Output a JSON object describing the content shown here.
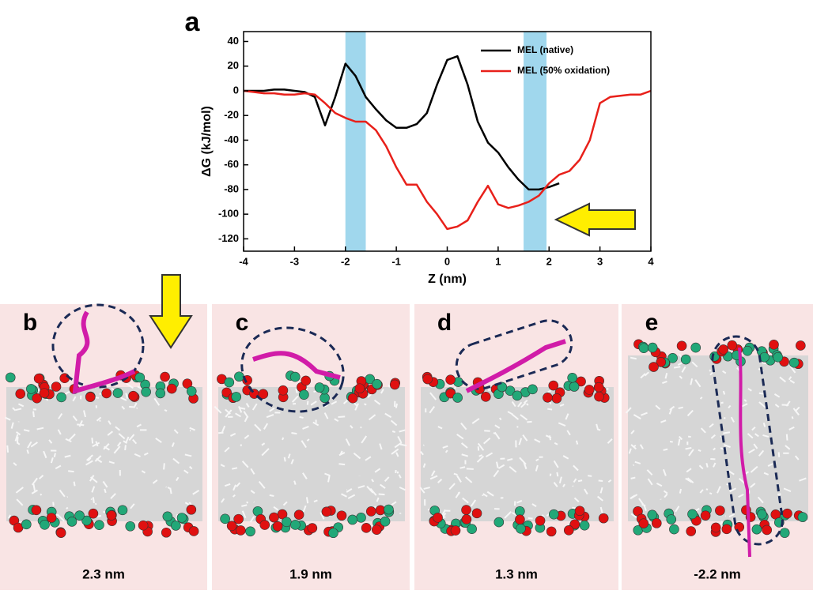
{
  "chart_data": {
    "type": "line",
    "panel_label": "a",
    "x_label": "Z (nm)",
    "y_label": "ΔG (kJ/mol)",
    "x": [
      -4,
      -3.8,
      -3.6,
      -3.4,
      -3.2,
      -3,
      -2.8,
      -2.6,
      -2.4,
      -2.2,
      -2,
      -1.8,
      -1.6,
      -1.4,
      -1.2,
      -1,
      -0.8,
      -0.6,
      -0.4,
      -0.2,
      0,
      0.2,
      0.4,
      0.6,
      0.8,
      1,
      1.2,
      1.4,
      1.6,
      1.8,
      2,
      2.2,
      2.4,
      2.6,
      2.8,
      3,
      3.2,
      3.4,
      3.6,
      3.8,
      4
    ],
    "series": [
      {
        "name": "MEL (native)",
        "color": "#000000",
        "values": [
          0,
          0,
          0,
          1,
          1,
          0,
          -1,
          -5,
          -28,
          -5,
          22,
          12,
          -5,
          -15,
          -24,
          -30,
          -30,
          -27,
          -18,
          5,
          25,
          28,
          5,
          -25,
          -42,
          -50,
          -62,
          -72,
          -80,
          -80,
          -78,
          -75,
          null,
          null,
          null,
          null,
          null,
          null,
          null,
          null,
          null
        ]
      },
      {
        "name": "MEL (50% oxidation)",
        "color": "#e8201a",
        "values": [
          0,
          -1,
          -2,
          -2,
          -3,
          -3,
          -2,
          -3,
          -10,
          -18,
          -22,
          -25,
          -25,
          -32,
          -45,
          -62,
          -76,
          -76,
          -90,
          -100,
          -112,
          -110,
          -105,
          -90,
          -77,
          -92,
          -95,
          -93,
          -90,
          -85,
          -75,
          -68,
          -65,
          -56,
          -40,
          -10,
          -5,
          -4,
          -3,
          -3,
          0
        ]
      }
    ],
    "bands": [
      [
        -2.0,
        -1.6
      ],
      [
        1.5,
        1.95
      ]
    ],
    "band_color": "#8fd0ea",
    "xlim": [
      -4,
      4
    ],
    "xticks": [
      -4,
      -3,
      -2,
      -1,
      0,
      1,
      2,
      3,
      4
    ],
    "ylim": [
      -130,
      48
    ],
    "yticks": [
      -120,
      -100,
      -80,
      -60,
      -40,
      -20,
      0,
      20,
      40
    ],
    "legend": "top-right"
  },
  "panels": [
    {
      "label": "b",
      "caption": "2.3 nm"
    },
    {
      "label": "c",
      "caption": "1.9 nm"
    },
    {
      "label": "d",
      "caption": "1.3 nm"
    },
    {
      "label": "e",
      "caption": "-2.2 nm"
    }
  ]
}
